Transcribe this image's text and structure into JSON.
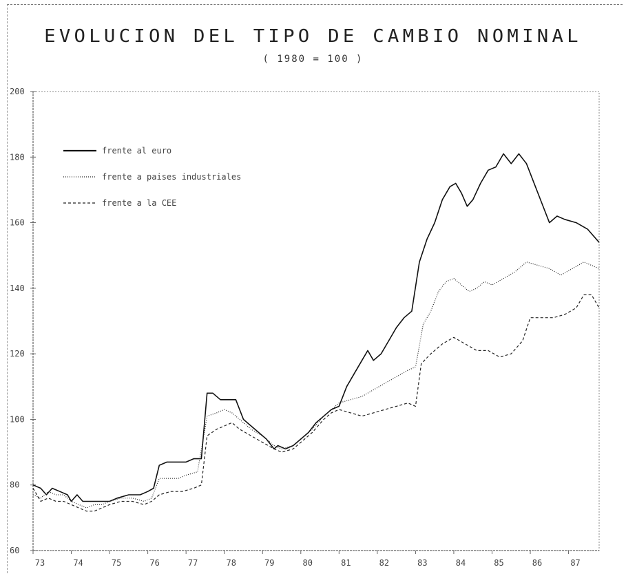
{
  "chart_data": {
    "type": "line",
    "title": "EVOLUCION DEL TIPO DE CAMBIO NOMINAL",
    "subtitle": "( 1980 = 100 )",
    "xlabel": "",
    "ylabel": "",
    "x_ticks": [
      "73",
      "74",
      "75",
      "76",
      "77",
      "78",
      "79",
      "80",
      "81",
      "82",
      "83",
      "84",
      "85",
      "86",
      "87"
    ],
    "y_ticks": [
      60,
      80,
      100,
      120,
      140,
      160,
      180,
      200
    ],
    "y_tick_labels": [
      "60",
      "80",
      "100",
      "120",
      "140",
      "160",
      "180",
      "200"
    ],
    "xlim": [
      73,
      87.8
    ],
    "ylim": [
      60,
      200
    ],
    "grid": false,
    "legend_position": "top-left",
    "series": [
      {
        "name": "frente al euro",
        "style": "solid",
        "color": "#111111",
        "points": [
          [
            73.0,
            80
          ],
          [
            73.2,
            79
          ],
          [
            73.35,
            77
          ],
          [
            73.5,
            79
          ],
          [
            73.7,
            78
          ],
          [
            73.9,
            77
          ],
          [
            74.0,
            75
          ],
          [
            74.15,
            77
          ],
          [
            74.3,
            75
          ],
          [
            74.5,
            75
          ],
          [
            74.8,
            75
          ],
          [
            75.0,
            75
          ],
          [
            75.2,
            76
          ],
          [
            75.5,
            77
          ],
          [
            75.8,
            77
          ],
          [
            76.0,
            78
          ],
          [
            76.15,
            79
          ],
          [
            76.3,
            86
          ],
          [
            76.5,
            87
          ],
          [
            76.8,
            87
          ],
          [
            77.0,
            87
          ],
          [
            77.2,
            88
          ],
          [
            77.4,
            88
          ],
          [
            77.55,
            108
          ],
          [
            77.7,
            108
          ],
          [
            77.9,
            106
          ],
          [
            78.1,
            106
          ],
          [
            78.3,
            106
          ],
          [
            78.5,
            100
          ],
          [
            78.7,
            98
          ],
          [
            78.9,
            96
          ],
          [
            79.1,
            94
          ],
          [
            79.3,
            91
          ],
          [
            79.4,
            92
          ],
          [
            79.6,
            91
          ],
          [
            79.8,
            92
          ],
          [
            80.0,
            94
          ],
          [
            80.2,
            96
          ],
          [
            80.4,
            99
          ],
          [
            80.6,
            101
          ],
          [
            80.8,
            103
          ],
          [
            81.0,
            104
          ],
          [
            81.2,
            110
          ],
          [
            81.4,
            114
          ],
          [
            81.6,
            118
          ],
          [
            81.75,
            121
          ],
          [
            81.9,
            118
          ],
          [
            82.1,
            120
          ],
          [
            82.3,
            124
          ],
          [
            82.5,
            128
          ],
          [
            82.7,
            131
          ],
          [
            82.9,
            133
          ],
          [
            83.1,
            148
          ],
          [
            83.3,
            155
          ],
          [
            83.5,
            160
          ],
          [
            83.7,
            167
          ],
          [
            83.9,
            171
          ],
          [
            84.05,
            172
          ],
          [
            84.2,
            169
          ],
          [
            84.35,
            165
          ],
          [
            84.5,
            167
          ],
          [
            84.7,
            172
          ],
          [
            84.9,
            176
          ],
          [
            85.1,
            177
          ],
          [
            85.3,
            181
          ],
          [
            85.5,
            178
          ],
          [
            85.7,
            181
          ],
          [
            85.9,
            178
          ],
          [
            86.1,
            172
          ],
          [
            86.3,
            166
          ],
          [
            86.5,
            160
          ],
          [
            86.7,
            162
          ],
          [
            86.9,
            161
          ],
          [
            87.2,
            160
          ],
          [
            87.5,
            158
          ],
          [
            87.8,
            154
          ]
        ]
      },
      {
        "name": "frente a paises industriales",
        "style": "dotted",
        "color": "#222222",
        "points": [
          [
            73.0,
            77
          ],
          [
            73.2,
            76
          ],
          [
            73.4,
            78
          ],
          [
            73.6,
            77
          ],
          [
            73.8,
            77
          ],
          [
            74.0,
            75
          ],
          [
            74.2,
            74
          ],
          [
            74.4,
            73
          ],
          [
            74.6,
            74
          ],
          [
            74.8,
            74
          ],
          [
            75.0,
            75
          ],
          [
            75.3,
            76
          ],
          [
            75.6,
            76
          ],
          [
            75.9,
            75
          ],
          [
            76.1,
            76
          ],
          [
            76.3,
            82
          ],
          [
            76.5,
            82
          ],
          [
            76.8,
            82
          ],
          [
            77.0,
            83
          ],
          [
            77.3,
            84
          ],
          [
            77.55,
            101
          ],
          [
            77.8,
            102
          ],
          [
            78.0,
            103
          ],
          [
            78.2,
            102
          ],
          [
            78.4,
            100
          ],
          [
            78.7,
            97
          ],
          [
            79.0,
            95
          ],
          [
            79.3,
            92
          ],
          [
            79.5,
            91
          ],
          [
            79.8,
            92
          ],
          [
            80.0,
            94
          ],
          [
            80.3,
            97
          ],
          [
            80.6,
            101
          ],
          [
            80.8,
            103
          ],
          [
            81.0,
            105
          ],
          [
            81.3,
            106
          ],
          [
            81.6,
            107
          ],
          [
            81.9,
            109
          ],
          [
            82.2,
            111
          ],
          [
            82.5,
            113
          ],
          [
            82.8,
            115
          ],
          [
            83.0,
            116
          ],
          [
            83.2,
            129
          ],
          [
            83.4,
            133
          ],
          [
            83.6,
            139
          ],
          [
            83.8,
            142
          ],
          [
            84.0,
            143
          ],
          [
            84.2,
            141
          ],
          [
            84.4,
            139
          ],
          [
            84.6,
            140
          ],
          [
            84.8,
            142
          ],
          [
            85.0,
            141
          ],
          [
            85.3,
            143
          ],
          [
            85.6,
            145
          ],
          [
            85.9,
            148
          ],
          [
            86.2,
            147
          ],
          [
            86.5,
            146
          ],
          [
            86.8,
            144
          ],
          [
            87.1,
            146
          ],
          [
            87.4,
            148
          ],
          [
            87.6,
            147
          ],
          [
            87.8,
            146
          ]
        ]
      },
      {
        "name": "frente a la CEE",
        "style": "dashed",
        "color": "#222222",
        "points": [
          [
            73.0,
            79
          ],
          [
            73.2,
            75
          ],
          [
            73.4,
            76
          ],
          [
            73.6,
            75
          ],
          [
            73.8,
            75
          ],
          [
            74.0,
            74
          ],
          [
            74.2,
            73
          ],
          [
            74.4,
            72
          ],
          [
            74.6,
            72
          ],
          [
            74.8,
            73
          ],
          [
            75.0,
            74
          ],
          [
            75.3,
            75
          ],
          [
            75.6,
            75
          ],
          [
            75.9,
            74
          ],
          [
            76.1,
            75
          ],
          [
            76.3,
            77
          ],
          [
            76.6,
            78
          ],
          [
            76.9,
            78
          ],
          [
            77.2,
            79
          ],
          [
            77.4,
            80
          ],
          [
            77.55,
            95
          ],
          [
            77.8,
            97
          ],
          [
            78.0,
            98
          ],
          [
            78.2,
            99
          ],
          [
            78.4,
            97
          ],
          [
            78.7,
            95
          ],
          [
            79.0,
            93
          ],
          [
            79.3,
            91
          ],
          [
            79.5,
            90
          ],
          [
            79.8,
            91
          ],
          [
            80.0,
            93
          ],
          [
            80.3,
            96
          ],
          [
            80.6,
            100
          ],
          [
            80.8,
            102
          ],
          [
            81.0,
            103
          ],
          [
            81.3,
            102
          ],
          [
            81.6,
            101
          ],
          [
            81.9,
            102
          ],
          [
            82.2,
            103
          ],
          [
            82.5,
            104
          ],
          [
            82.8,
            105
          ],
          [
            83.0,
            104
          ],
          [
            83.15,
            117
          ],
          [
            83.4,
            120
          ],
          [
            83.7,
            123
          ],
          [
            84.0,
            125
          ],
          [
            84.3,
            123
          ],
          [
            84.6,
            121
          ],
          [
            84.9,
            121
          ],
          [
            85.2,
            119
          ],
          [
            85.5,
            120
          ],
          [
            85.8,
            124
          ],
          [
            86.0,
            131
          ],
          [
            86.3,
            131
          ],
          [
            86.6,
            131
          ],
          [
            86.9,
            132
          ],
          [
            87.2,
            134
          ],
          [
            87.4,
            138
          ],
          [
            87.6,
            138
          ],
          [
            87.8,
            134
          ]
        ]
      }
    ]
  }
}
